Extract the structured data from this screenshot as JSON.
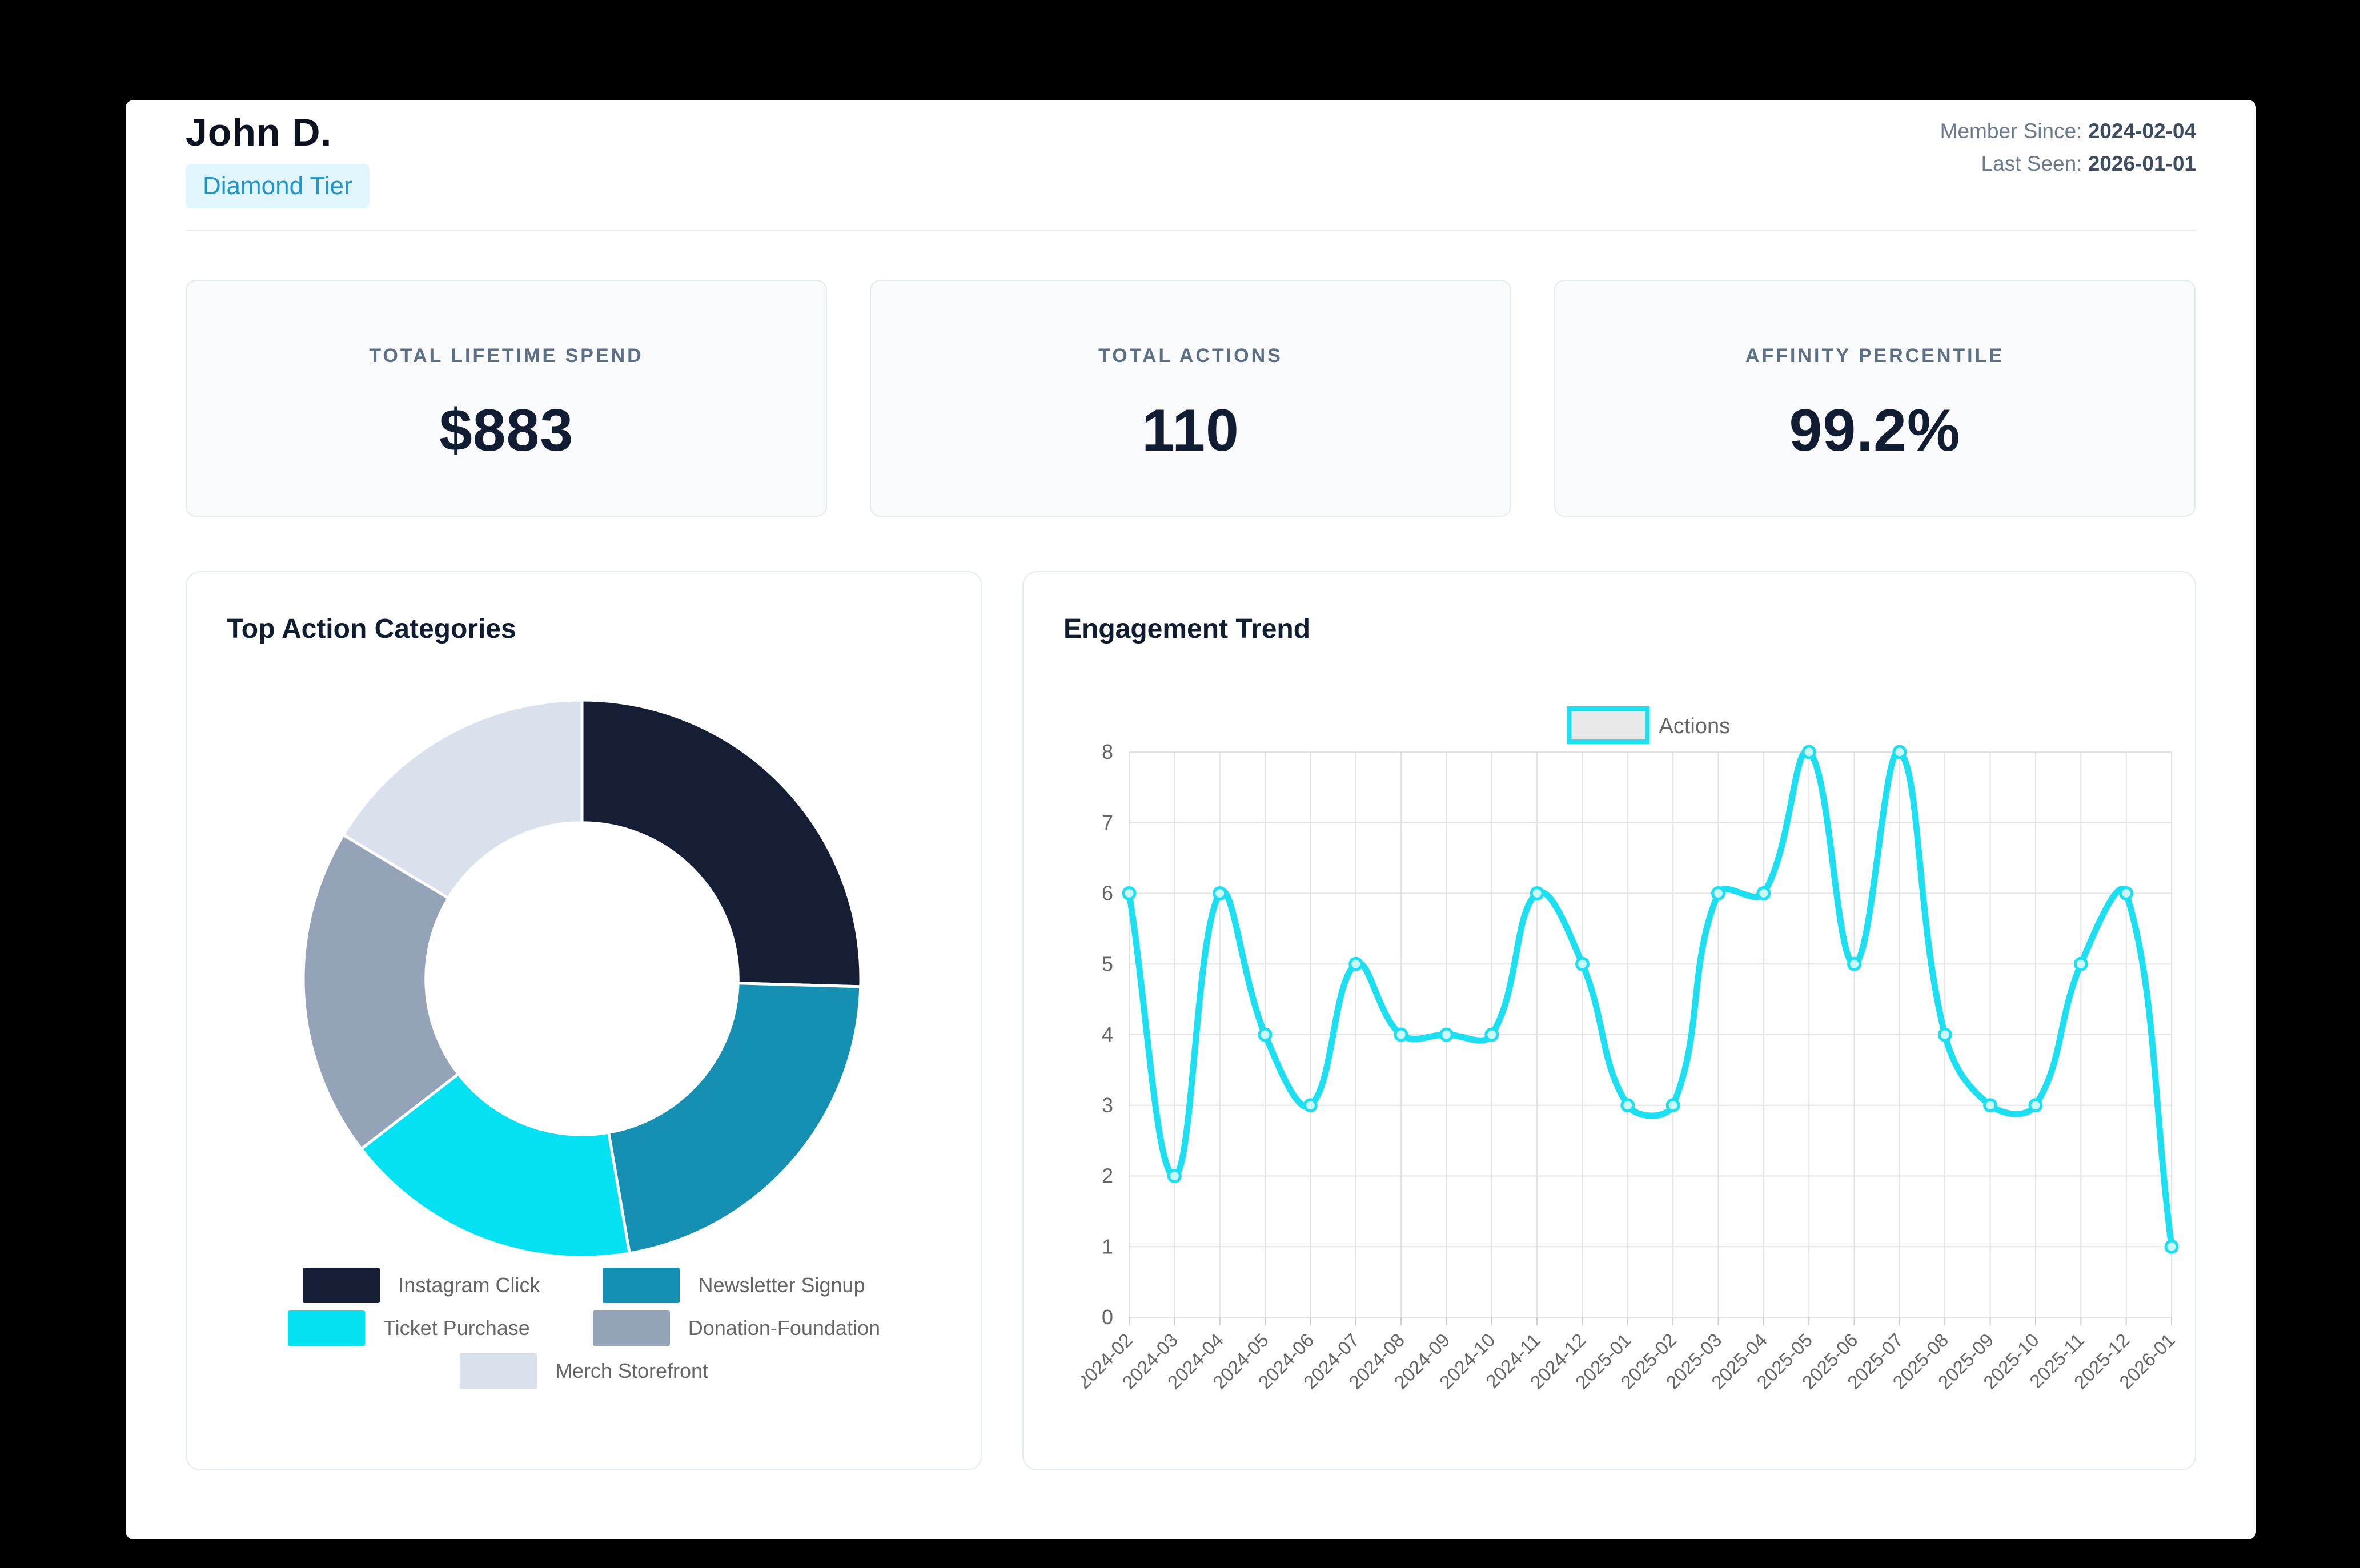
{
  "page": {
    "frame_color": "#000000",
    "panel_color": "#ffffff"
  },
  "header": {
    "name": "John D.",
    "tier_badge": "Diamond Tier",
    "member_since_label": "Member Since:",
    "member_since_value": "2024-02-04",
    "last_seen_label": "Last Seen:",
    "last_seen_value": "2026-01-01"
  },
  "stats": [
    {
      "label": "Total Lifetime Spend",
      "value": "$883"
    },
    {
      "label": "Total Actions",
      "value": "110"
    },
    {
      "label": "Affinity Percentile",
      "value": "99.2%"
    }
  ],
  "chart_data": [
    {
      "type": "pie",
      "title": "Top Action Categories",
      "labels": [
        "Instagram Click",
        "Newsletter Signup",
        "Ticket Purchase",
        "Donation-Foundation",
        "Merch Storefront"
      ],
      "values": [
        28,
        24,
        19,
        21,
        18
      ],
      "colors": [
        "#161e36",
        "#1690b2",
        "#03e1f2",
        "#95a3b8",
        "#dbe1ec"
      ],
      "donut_hole_ratio": 0.56,
      "legend_position": "bottom",
      "legend_text_color": "#666666"
    },
    {
      "type": "line",
      "title": "Engagement Trend",
      "x": [
        "2024-02",
        "2024-03",
        "2024-04",
        "2024-05",
        "2024-06",
        "2024-07",
        "2024-08",
        "2024-09",
        "2024-10",
        "2024-11",
        "2024-12",
        "2025-01",
        "2025-02",
        "2025-03",
        "2025-04",
        "2025-05",
        "2025-06",
        "2025-07",
        "2025-08",
        "2025-09",
        "2025-10",
        "2025-11",
        "2025-12",
        "2026-01"
      ],
      "series": [
        {
          "name": "Actions",
          "values": [
            6,
            2,
            6,
            4,
            3,
            5,
            4,
            4,
            4,
            6,
            5,
            3,
            3,
            6,
            6,
            8,
            5,
            8,
            4,
            3,
            3,
            5,
            6,
            1
          ]
        }
      ],
      "ylim": [
        0,
        8
      ],
      "yticks": [
        0,
        1,
        2,
        3,
        4,
        5,
        6,
        7,
        8
      ],
      "grid": true,
      "line_color": "#1ddff2",
      "marker_fill": "#c9f7fb",
      "grid_color": "#e2e2e2",
      "tick_color": "#666666",
      "legend_position": "top",
      "legend_box_fill": "#e9e9e9"
    }
  ]
}
